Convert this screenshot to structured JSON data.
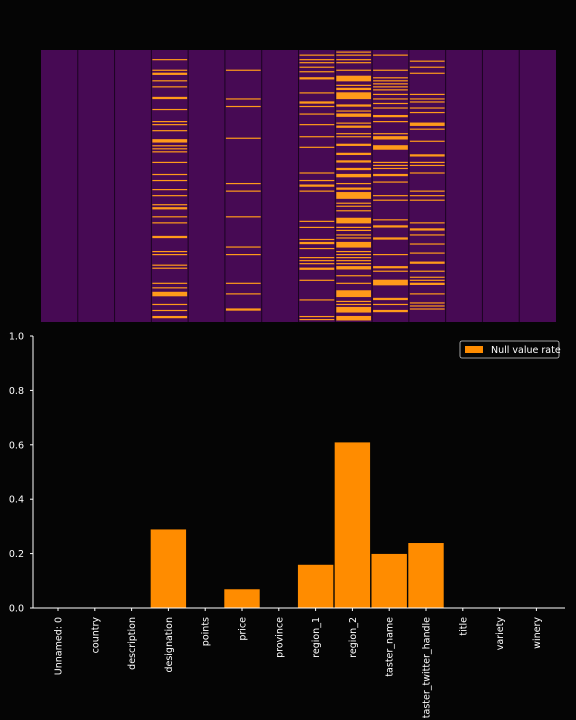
{
  "chart_data": [
    {
      "type": "heatmap",
      "title": "",
      "columns": [
        "Unnamed: 0",
        "country",
        "description",
        "designation",
        "points",
        "price",
        "province",
        "region_1",
        "region_2",
        "taster_name",
        "taster_twitter_handle",
        "title",
        "variety",
        "winery"
      ],
      "null_rates": [
        0,
        0,
        0,
        0.29,
        0,
        0.07,
        0,
        0.16,
        0.61,
        0.2,
        0.24,
        0,
        0,
        0
      ],
      "present_color": "#470a54",
      "missing_color": "#ff9a1a",
      "grid": false
    },
    {
      "type": "bar",
      "title": "",
      "xlabel": "",
      "ylabel": "",
      "categories": [
        "Unnamed: 0",
        "country",
        "description",
        "designation",
        "points",
        "price",
        "province",
        "region_1",
        "region_2",
        "taster_name",
        "taster_twitter_handle",
        "title",
        "variety",
        "winery"
      ],
      "series": [
        {
          "name": "Null value rate",
          "values": [
            0,
            0,
            0,
            0.29,
            0,
            0.07,
            0,
            0.16,
            0.61,
            0.2,
            0.24,
            0,
            0,
            0
          ]
        }
      ],
      "ylim": [
        0,
        1.0
      ],
      "yticks": [
        "0.0",
        "0.2",
        "0.4",
        "0.6",
        "0.8",
        "1.0"
      ],
      "legend": "top-right",
      "bar_color": "#ff8c00",
      "grid": false
    }
  ]
}
